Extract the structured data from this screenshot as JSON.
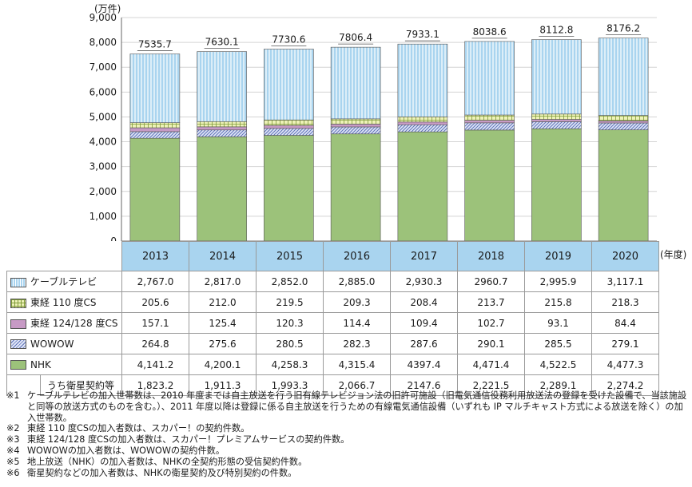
{
  "chart_data": {
    "type": "bar",
    "stacked": true,
    "unit": "(万件)",
    "x_unit": "(年度)",
    "ylim": [
      0,
      9000
    ],
    "yticks": [
      "0",
      "1,000",
      "2,000",
      "3,000",
      "4,000",
      "5,000",
      "6,000",
      "7,000",
      "8,000",
      "9,000"
    ],
    "ytick_values": [
      0,
      1000,
      2000,
      3000,
      4000,
      5000,
      6000,
      7000,
      8000,
      9000
    ],
    "grid": true,
    "categories": [
      "2013",
      "2014",
      "2015",
      "2016",
      "2017",
      "2018",
      "2019",
      "2020"
    ],
    "totals": [
      "7535.7",
      "7630.1",
      "7730.6",
      "7806.4",
      "7933.1",
      "8038.6",
      "8112.8",
      "8176.2"
    ],
    "stack_order_bottom_to_top": [
      "NHK",
      "WOWOW",
      "東経 124/128 度CS",
      "東経 110 度CS",
      "ケーブルテレビ"
    ],
    "series": [
      {
        "name": "ケーブルテレビ",
        "values": [
          2767.0,
          2817.0,
          2852.0,
          2885.0,
          2930.3,
          2960.7,
          2995.9,
          3117.1
        ],
        "labels": [
          "2,767.0",
          "2,817.0",
          "2,852.0",
          "2,885.0",
          "2,930.3",
          "2960.7",
          "2,995.9",
          "3,117.1"
        ],
        "color": "#a9d4ef",
        "pattern": "vertical-lines"
      },
      {
        "name": "東経 110 度CS",
        "values": [
          205.6,
          212.0,
          219.5,
          209.3,
          208.4,
          213.7,
          215.8,
          218.3
        ],
        "labels": [
          "205.6",
          "212.0",
          "219.5",
          "209.3",
          "208.4",
          "213.7",
          "215.8",
          "218.3"
        ],
        "color": "#eef2b8",
        "pattern": "grid"
      },
      {
        "name": "東経 124/128 度CS",
        "values": [
          157.1,
          125.4,
          120.3,
          114.4,
          109.4,
          102.7,
          93.1,
          84.4
        ],
        "labels": [
          "157.1",
          "125.4",
          "120.3",
          "114.4",
          "109.4",
          "102.7",
          "93.1",
          "84.4"
        ],
        "color": "#c79ac5",
        "pattern": "solid"
      },
      {
        "name": "WOWOW",
        "values": [
          264.8,
          275.6,
          280.5,
          282.3,
          287.6,
          290.1,
          285.5,
          279.1
        ],
        "labels": [
          "264.8",
          "275.6",
          "280.5",
          "282.3",
          "287.6",
          "290.1",
          "285.5",
          "279.1"
        ],
        "color": "#b8c4e6",
        "pattern": "diagonal"
      },
      {
        "name": "NHK",
        "values": [
          4141.2,
          4200.1,
          4258.3,
          4315.4,
          4397.4,
          4471.4,
          4522.5,
          4477.3
        ],
        "labels": [
          "4,141.2",
          "4,200.1",
          "4,258.3",
          "4,315.4",
          "4397.4",
          "4,471.4",
          "4,522.5",
          "4,477.3"
        ],
        "color": "#9cc27a",
        "pattern": "solid"
      }
    ],
    "sub_row": {
      "name": "うち衛星契約等",
      "labels": [
        "1,823.2",
        "1,911.3",
        "1,993.3",
        "2,066.7",
        "2147.6",
        "2,221.5",
        "2,289.1",
        "2,274.2"
      ]
    }
  },
  "notes": [
    {
      "num": "※1",
      "text": "ケーブルテレビの加入世帯数は、2010 年度までは自主放送を行う旧有線テレビジョン法の旧許可施設（旧電気通信役務利用放送法の登録を受けた設備で、当該施設と同等の放送方式のものを含む。）、2011 年度以降は登録に係る自主放送を行うための有線電気通信設備（いずれも IP マルチキャスト方式による放送を除く）の加入世帯数。"
    },
    {
      "num": "※2",
      "text": "東経 110 度CSの加入者数は、スカパー！の契約件数。"
    },
    {
      "num": "※3",
      "text": "東経 124/128 度CSの加入者数は、スカパー！プレミアムサービスの契約件数。"
    },
    {
      "num": "※4",
      "text": "WOWOWの加入者数は、WOWOWの契約件数。"
    },
    {
      "num": "※5",
      "text": "地上放送（NHK）の加入者数は、NHKの全契約形態の受信契約件数。"
    },
    {
      "num": "※6",
      "text": "衛星契約などの加入者数は、NHKの衛星契約及び特別契約の件数。"
    }
  ]
}
